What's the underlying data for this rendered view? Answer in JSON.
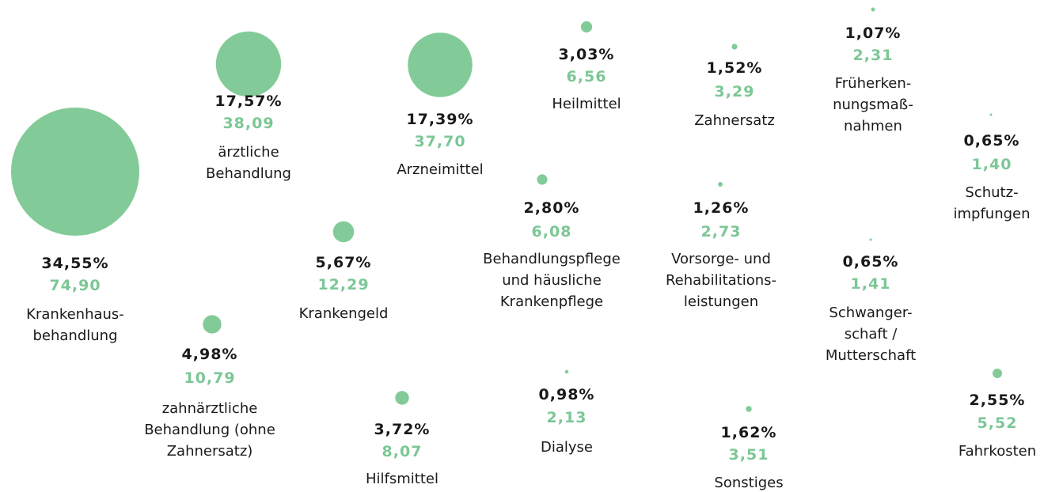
{
  "chart_data": {
    "type": "bubble",
    "categories": [
      "Krankenhaus-\nbehandlung",
      "ärztliche\nBehandlung",
      "Arzneimittel",
      "Heilmittel",
      "Zahnersatz",
      "Früherken-\nnungsmaß-\nnahmen",
      "Schutz-\nimpfungen",
      "Behandlungspflege\nund häusliche\nKrankenpflege",
      "Vorsorge- und\nRehabilitations-\nleistungen",
      "Schwanger-\nschaft /\nMutterschaft",
      "Krankengeld",
      "zahnärztliche\nBehandlung (ohne\nZahnersatz)",
      "Hilfsmittel",
      "Dialyse",
      "Sonstiges",
      "Fahrkosten"
    ],
    "series": [
      {
        "color": "#1a1a1a",
        "values": [
          34.55,
          17.57,
          17.39,
          3.03,
          1.52,
          1.07,
          0.65,
          2.8,
          1.26,
          0.65,
          5.67,
          4.98,
          3.72,
          0.98,
          1.62,
          2.55
        ],
        "value_labels": [
          "34,55%",
          "17,57%",
          "17,39%",
          "3,03%",
          "1,52%",
          "1,07%",
          "0,65%",
          "2,80%",
          "1,26%",
          "0,65%",
          "5,67%",
          "4,98%",
          "3,72%",
          "0,98%",
          "1,62%",
          "2,55%"
        ]
      },
      {
        "color": "#7cc796",
        "values": [
          74.9,
          38.09,
          37.7,
          6.56,
          3.29,
          2.31,
          1.4,
          6.08,
          2.73,
          1.41,
          12.29,
          10.79,
          8.07,
          2.13,
          3.51,
          5.52
        ],
        "value_labels": [
          "74,90",
          "38,09",
          "37,70",
          "6,56",
          "3,29",
          "2,31",
          "1,40",
          "6,08",
          "2,73",
          "1,41",
          "12,29",
          "10,79",
          "8,07",
          "2,13",
          "3,51",
          "5,52"
        ]
      }
    ],
    "bubble_color": "#82cb98"
  }
}
